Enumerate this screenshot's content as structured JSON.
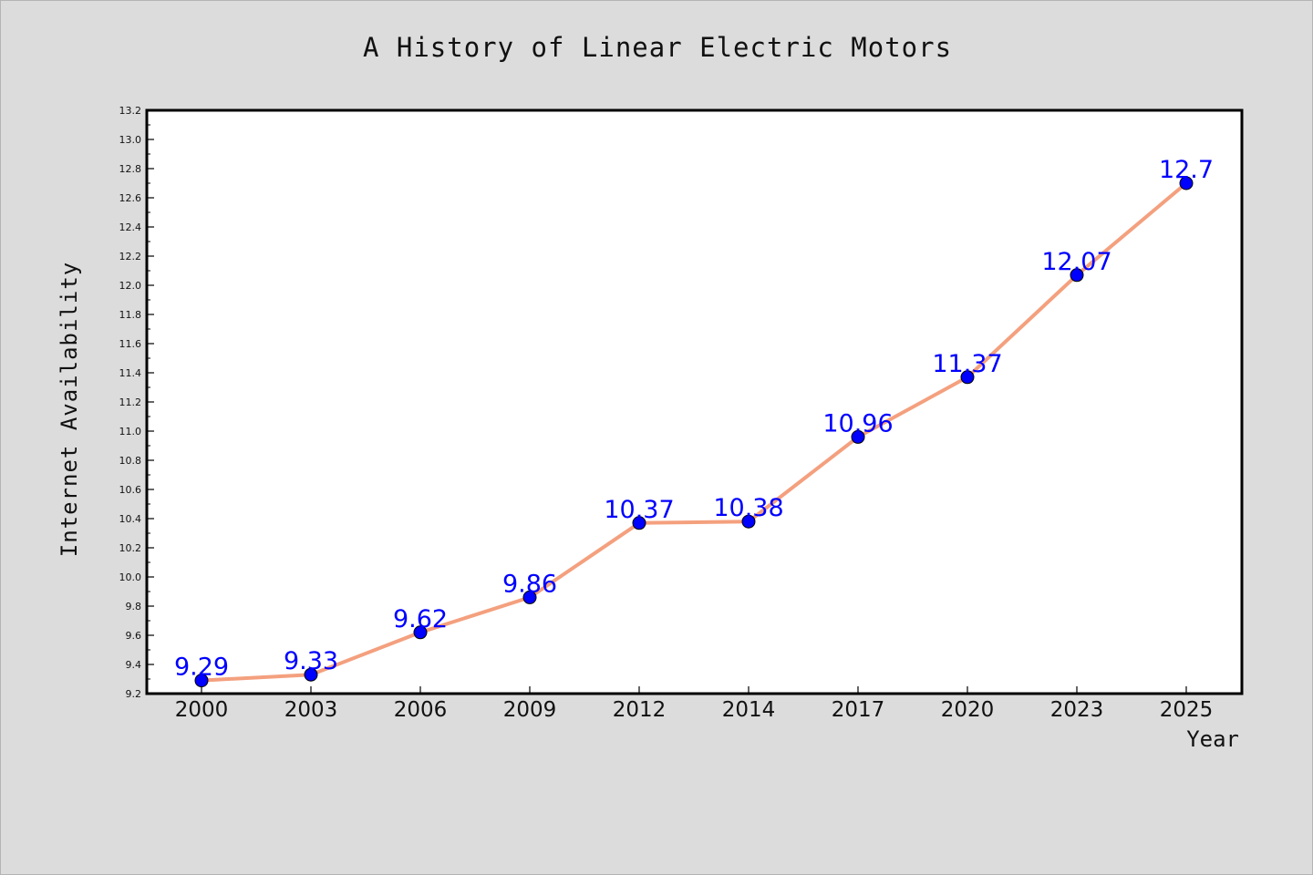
{
  "chart_data": {
    "type": "line",
    "title": "A History of Linear Electric Motors",
    "xlabel": "Year",
    "ylabel": "Internet Availability",
    "categories": [
      "2000",
      "2003",
      "2006",
      "2009",
      "2012",
      "2014",
      "2017",
      "2020",
      "2023",
      "2025"
    ],
    "series": [
      {
        "values": [
          9.29,
          9.33,
          9.62,
          9.86,
          10.37,
          10.38,
          10.96,
          11.37,
          12.07,
          12.7
        ],
        "data_labels": [
          "9.29",
          "9.33",
          "9.62",
          "9.86",
          "10.37",
          "10.38",
          "10.96",
          "11.37",
          "12.07",
          "12.7"
        ]
      }
    ],
    "ylim": [
      9.2,
      13.2
    ],
    "y_ticks": [
      "9.2",
      "9.4",
      "9.6",
      "9.8",
      "10.0",
      "10.2",
      "10.4",
      "10.6",
      "10.8",
      "11.0",
      "11.2",
      "11.4",
      "11.6",
      "11.8",
      "12.0",
      "12.2",
      "12.4",
      "12.6",
      "12.8",
      "13.0",
      "13.2"
    ],
    "grid": false,
    "legend": "none",
    "colors": {
      "line": "#f4a07e",
      "marker": "#0000ff",
      "data_label": "#0000ff",
      "plot_background": "#ffffff",
      "figure_background": "#dcdcdc"
    }
  }
}
